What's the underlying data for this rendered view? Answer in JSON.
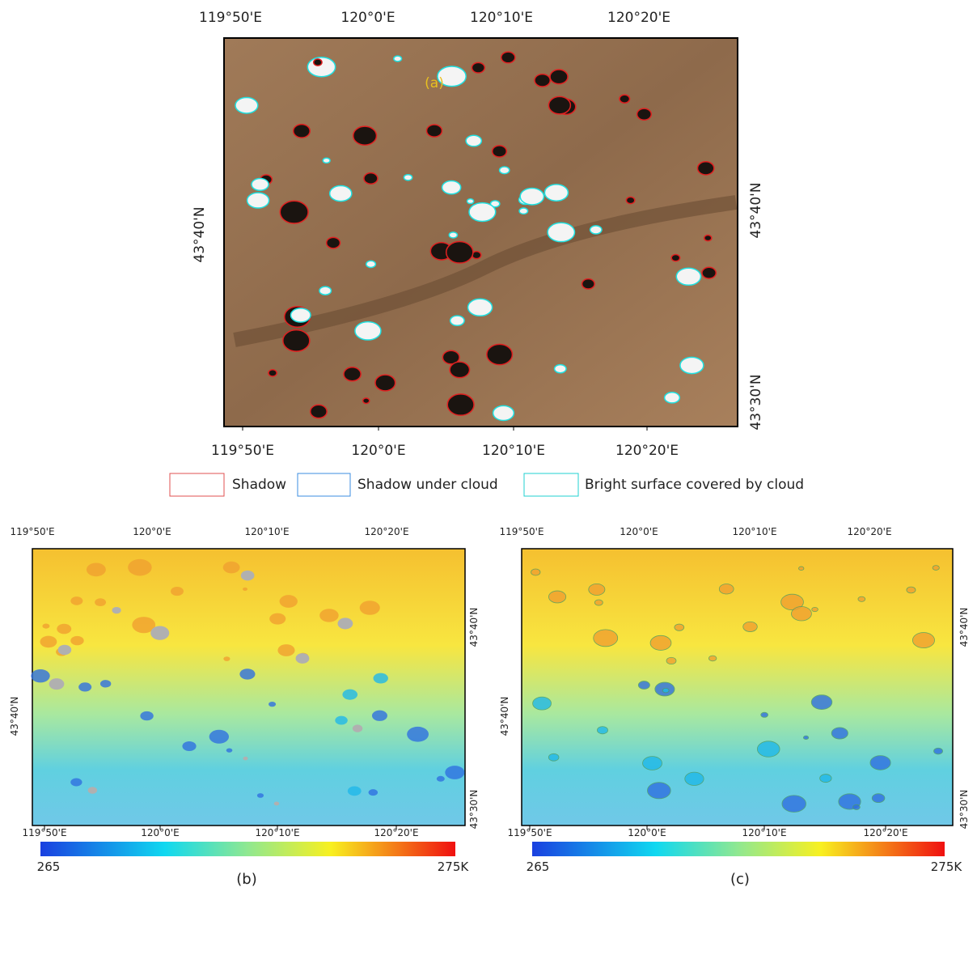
{
  "panels": [
    {
      "label": "(a)",
      "top_ticks": [
        "119°50'E",
        "120°0'E",
        "120°10'E",
        "120°20'E"
      ],
      "bottom_ticks": [
        "119°50'E",
        "120°0'E",
        "120°10'E",
        "120°20'E"
      ],
      "left_ticks": [
        "43°40'N"
      ],
      "right_ticks": [
        "43°40'N",
        "43°30'N"
      ]
    },
    {
      "label": "(b)",
      "top_ticks": [
        "119°50'E",
        "120°0'E",
        "120°10'E",
        "120°20'E"
      ],
      "bottom_ticks": [
        "119°50'E",
        "120°0'E",
        "120°10'E",
        "120°20'E"
      ],
      "left_ticks": [
        "43°40'N"
      ],
      "right_ticks": [
        "43°40'N",
        "43°30'N"
      ],
      "colorbar": {
        "min_label": "265",
        "max_label": "275K"
      }
    },
    {
      "label": "(c)",
      "top_ticks": [
        "119°50'E",
        "120°0'E",
        "120°10'E",
        "120°20'E"
      ],
      "bottom_ticks": [
        "119°50'E",
        "120°0'E",
        "120°10'E",
        "120°20'E"
      ],
      "left_ticks": [
        "43°40'N"
      ],
      "right_ticks": [
        "43°40'N",
        "43°30'N"
      ],
      "colorbar": {
        "min_label": "265",
        "max_label": "275K"
      }
    }
  ],
  "legend": [
    "Shadow",
    "Shadow under cloud",
    "Bright surface covered by cloud"
  ]
}
